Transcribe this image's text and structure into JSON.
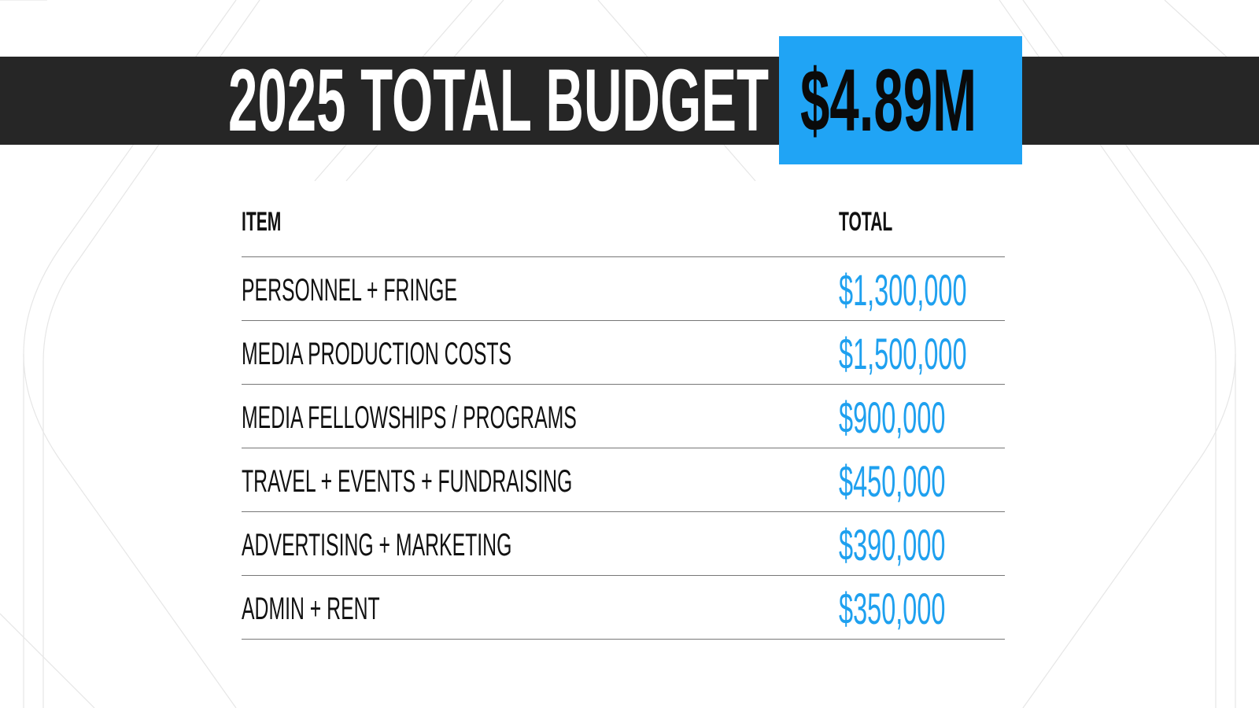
{
  "title": "2025  TOTAL BUDGET",
  "total": "$4.89M",
  "table": {
    "headers": {
      "item": "ITEM",
      "total": "TOTAL"
    },
    "rows": [
      {
        "item": "PERSONNEL + FRINGE",
        "total": "$1,300,000"
      },
      {
        "item": "MEDIA PRODUCTION COSTS",
        "total": "$1,500,000"
      },
      {
        "item": "MEDIA FELLOWSHIPS / PROGRAMS",
        "total": "$900,000"
      },
      {
        "item": "TRAVEL + EVENTS + FUNDRAISING",
        "total": "$450,000"
      },
      {
        "item": "ADVERTISING + MARKETING",
        "total": "$390,000"
      },
      {
        "item": "ADMIN + RENT",
        "total": "$350,000"
      }
    ]
  },
  "colors": {
    "accent": "#20a4f5",
    "bar": "#262626",
    "value_text": "#1ea0ef"
  }
}
